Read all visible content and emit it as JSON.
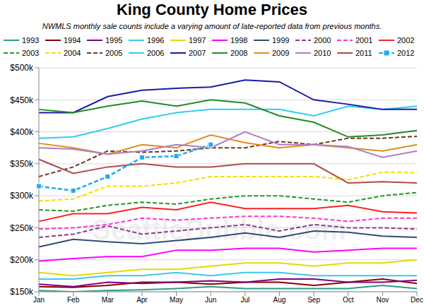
{
  "chart_data": {
    "type": "line",
    "title": "King County Home Prices",
    "subtitle": "NWMLS monthly sale counts include a varying amount of late-reported data from previous months.",
    "annotations": [
      "SeattleBubble.com"
    ],
    "categories": [
      "Jan",
      "Feb",
      "Mar",
      "Apr",
      "May",
      "Jun",
      "Jul",
      "Aug",
      "Sep",
      "Oct",
      "Nov",
      "Dec"
    ],
    "ylim": [
      150000,
      500000
    ],
    "yticks": [
      {
        "value": 150000,
        "label": "$150k"
      },
      {
        "value": 200000,
        "label": "$200k"
      },
      {
        "value": 250000,
        "label": "$250k"
      },
      {
        "value": 300000,
        "label": "$300k"
      },
      {
        "value": 350000,
        "label": "$350k"
      },
      {
        "value": 400000,
        "label": "$400k"
      },
      {
        "value": 450000,
        "label": "$450k"
      },
      {
        "value": 500000,
        "label": "$500k"
      }
    ],
    "grid": true,
    "series": [
      {
        "name": "1993",
        "color": "#2e9c8a",
        "line_style": "solid",
        "values": [
          152000,
          150000,
          152000,
          153000,
          155000,
          158000,
          155000,
          155000,
          155000,
          155000,
          160000,
          155000
        ]
      },
      {
        "name": "1994",
        "color": "#8b0000",
        "line_style": "solid",
        "values": [
          158000,
          157000,
          160000,
          165000,
          165000,
          162000,
          165000,
          165000,
          160000,
          165000,
          170000,
          163000
        ]
      },
      {
        "name": "1995",
        "color": "#800080",
        "line_style": "solid",
        "values": [
          162000,
          158000,
          165000,
          163000,
          165000,
          167000,
          165000,
          170000,
          170000,
          165000,
          165000,
          168000
        ]
      },
      {
        "name": "1996",
        "color": "#3cc8f0",
        "line_style": "solid",
        "values": [
          170000,
          170000,
          175000,
          175000,
          180000,
          175000,
          180000,
          180000,
          175000,
          175000,
          175000,
          175000
        ]
      },
      {
        "name": "1997",
        "color": "#e8d800",
        "line_style": "solid",
        "values": [
          180000,
          175000,
          180000,
          185000,
          185000,
          190000,
          195000,
          195000,
          190000,
          195000,
          195000,
          200000
        ]
      },
      {
        "name": "1998",
        "color": "#ff00ff",
        "line_style": "solid",
        "values": [
          198000,
          202000,
          205000,
          205000,
          215000,
          215000,
          218000,
          218000,
          212000,
          215000,
          218000,
          218000
        ]
      },
      {
        "name": "1999",
        "color": "#34497a",
        "line_style": "solid",
        "values": [
          220000,
          232000,
          228000,
          225000,
          230000,
          235000,
          242000,
          235000,
          245000,
          243000,
          237000,
          235000
        ]
      },
      {
        "name": "2000",
        "color": "#8b3a8b",
        "line_style": "dashed",
        "values": [
          235000,
          240000,
          253000,
          240000,
          245000,
          250000,
          255000,
          245000,
          255000,
          250000,
          250000,
          248000
        ]
      },
      {
        "name": "2001",
        "color": "#ff33cc",
        "line_style": "dashed",
        "values": [
          248000,
          250000,
          255000,
          265000,
          262000,
          265000,
          268000,
          268000,
          265000,
          260000,
          265000,
          265000
        ]
      },
      {
        "name": "2002",
        "color": "#ff2020",
        "line_style": "solid",
        "values": [
          260000,
          272000,
          272000,
          282000,
          278000,
          290000,
          280000,
          280000,
          280000,
          285000,
          275000,
          273000
        ]
      },
      {
        "name": "2003",
        "color": "#229922",
        "line_style": "dashed",
        "values": [
          278000,
          276000,
          285000,
          290000,
          287000,
          295000,
          300000,
          300000,
          295000,
          290000,
          300000,
          305000
        ]
      },
      {
        "name": "2004",
        "color": "#f0e000",
        "line_style": "dashed",
        "values": [
          292000,
          295000,
          315000,
          315000,
          320000,
          330000,
          330000,
          330000,
          330000,
          325000,
          337000,
          336000
        ]
      },
      {
        "name": "2005",
        "color": "#6b3a1f",
        "line_style": "dashed",
        "values": [
          330000,
          345000,
          370000,
          368000,
          370000,
          375000,
          375000,
          385000,
          380000,
          390000,
          390000,
          393000
        ]
      },
      {
        "name": "2006",
        "color": "#33ccee",
        "line_style": "solid",
        "values": [
          390000,
          392000,
          405000,
          420000,
          430000,
          435000,
          435000,
          435000,
          425000,
          440000,
          435000,
          440000
        ]
      },
      {
        "name": "2007",
        "color": "#1a1aaa",
        "line_style": "solid",
        "values": [
          430000,
          430000,
          455000,
          465000,
          468000,
          470000,
          481000,
          478000,
          450000,
          443000,
          435000,
          435000
        ]
      },
      {
        "name": "2008",
        "color": "#228b22",
        "line_style": "solid",
        "values": [
          435000,
          430000,
          440000,
          448000,
          440000,
          450000,
          445000,
          425000,
          415000,
          392000,
          395000,
          402000
        ]
      },
      {
        "name": "2009",
        "color": "#e68a1a",
        "line_style": "solid",
        "values": [
          382000,
          375000,
          365000,
          380000,
          375000,
          395000,
          383000,
          375000,
          380000,
          375000,
          370000,
          380000
        ]
      },
      {
        "name": "2010",
        "color": "#b07cc6",
        "line_style": "solid",
        "values": [
          375000,
          373000,
          365000,
          370000,
          380000,
          375000,
          400000,
          380000,
          380000,
          377000,
          360000,
          370000
        ]
      },
      {
        "name": "2011",
        "color": "#b04a4a",
        "line_style": "solid",
        "values": [
          357000,
          335000,
          345000,
          350000,
          345000,
          345000,
          350000,
          350000,
          350000,
          320000,
          322000,
          320000
        ]
      },
      {
        "name": "2012",
        "color": "#22aaee",
        "line_style": "dashed",
        "marker": "square",
        "values": [
          315000,
          308000,
          330000,
          360000,
          362000,
          380000,
          null,
          null,
          null,
          null,
          null,
          null
        ]
      }
    ]
  }
}
